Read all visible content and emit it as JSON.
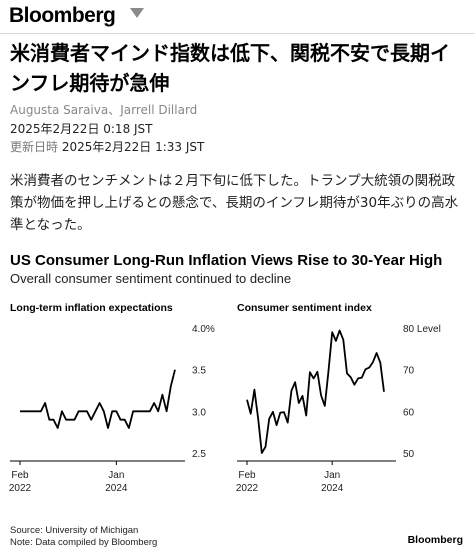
{
  "brand": {
    "name": "Bloomberg",
    "menu_icon": "caret-down-icon"
  },
  "article": {
    "headline": "米消費者マインド指数は低下、関税不安で長期インフレ期待が急伸",
    "authors": "Augusta Saraiva、Jarrell Dillard",
    "published": "2025年2月22日 0:18 JST",
    "updated_label": "更新日時",
    "updated": "2025年2月22日 1:33 JST",
    "body": "米消費者のセンチメントは２月下旬に低下した。トランプ大統領の関税政策が物価を押し上げるとの懸念で、長期のインフレ期待が30年ぶりの高水準となった。"
  },
  "figure": {
    "title": "US Consumer Long-Run Inflation Views Rise to 30-Year High",
    "subtitle": "Overall consumer sentiment continued to decline",
    "source": "Source: University of Michigan",
    "note": "Note: Data compiled by Bloomberg",
    "brand": "Bloomberg"
  },
  "chart_data": [
    {
      "type": "line",
      "title": "Long-term inflation expectations",
      "ylim": [
        2.5,
        4.0
      ],
      "yticks": [
        "2.5",
        "3.0",
        "3.5",
        "4.0%"
      ],
      "ytick_values": [
        2.5,
        3.0,
        3.5,
        4.0
      ],
      "xticks": [
        {
          "label": [
            "Feb",
            "2022"
          ],
          "x": 0
        },
        {
          "label": [
            "Jan",
            "2024"
          ],
          "x": 23
        }
      ],
      "xlim": [
        0,
        37
      ],
      "series": [
        {
          "values": [
            3.0,
            3.0,
            3.0,
            3.0,
            3.0,
            3.0,
            3.1,
            2.9,
            2.9,
            2.8,
            3.0,
            2.9,
            2.9,
            2.9,
            3.0,
            3.0,
            3.0,
            2.9,
            3.0,
            3.1,
            3.0,
            2.8,
            3.0,
            3.0,
            2.9,
            2.9,
            2.8,
            3.0,
            3.0,
            3.0,
            3.0,
            3.0,
            3.1,
            3.0,
            3.2,
            3.0,
            3.3,
            3.5
          ]
        }
      ],
      "color": "#000000",
      "grid": false
    },
    {
      "type": "line",
      "title": "Consumer sentiment index",
      "ylim": [
        50,
        80
      ],
      "yticks": [
        "50",
        "60",
        "70",
        "80 Level"
      ],
      "ytick_values": [
        50,
        60,
        70,
        80
      ],
      "xticks": [
        {
          "label": [
            "Feb",
            "2022"
          ],
          "x": 0
        },
        {
          "label": [
            "Jan",
            "2024"
          ],
          "x": 23
        }
      ],
      "xlim": [
        0,
        37
      ],
      "series": [
        {
          "values": [
            62.8,
            59.4,
            65.2,
            58.4,
            50.0,
            51.5,
            58.2,
            59.9,
            56.7,
            59.7,
            59.8,
            57.3,
            64.9,
            67.0,
            62.0,
            63.7,
            59.0,
            69.4,
            67.9,
            69.5,
            63.8,
            61.3,
            69.7,
            79.0,
            76.9,
            79.4,
            77.2,
            69.1,
            68.2,
            66.4,
            67.9,
            68.1,
            70.1,
            70.5,
            71.8,
            74.0,
            71.7,
            64.7
          ]
        }
      ],
      "color": "#000000",
      "grid": false
    }
  ]
}
